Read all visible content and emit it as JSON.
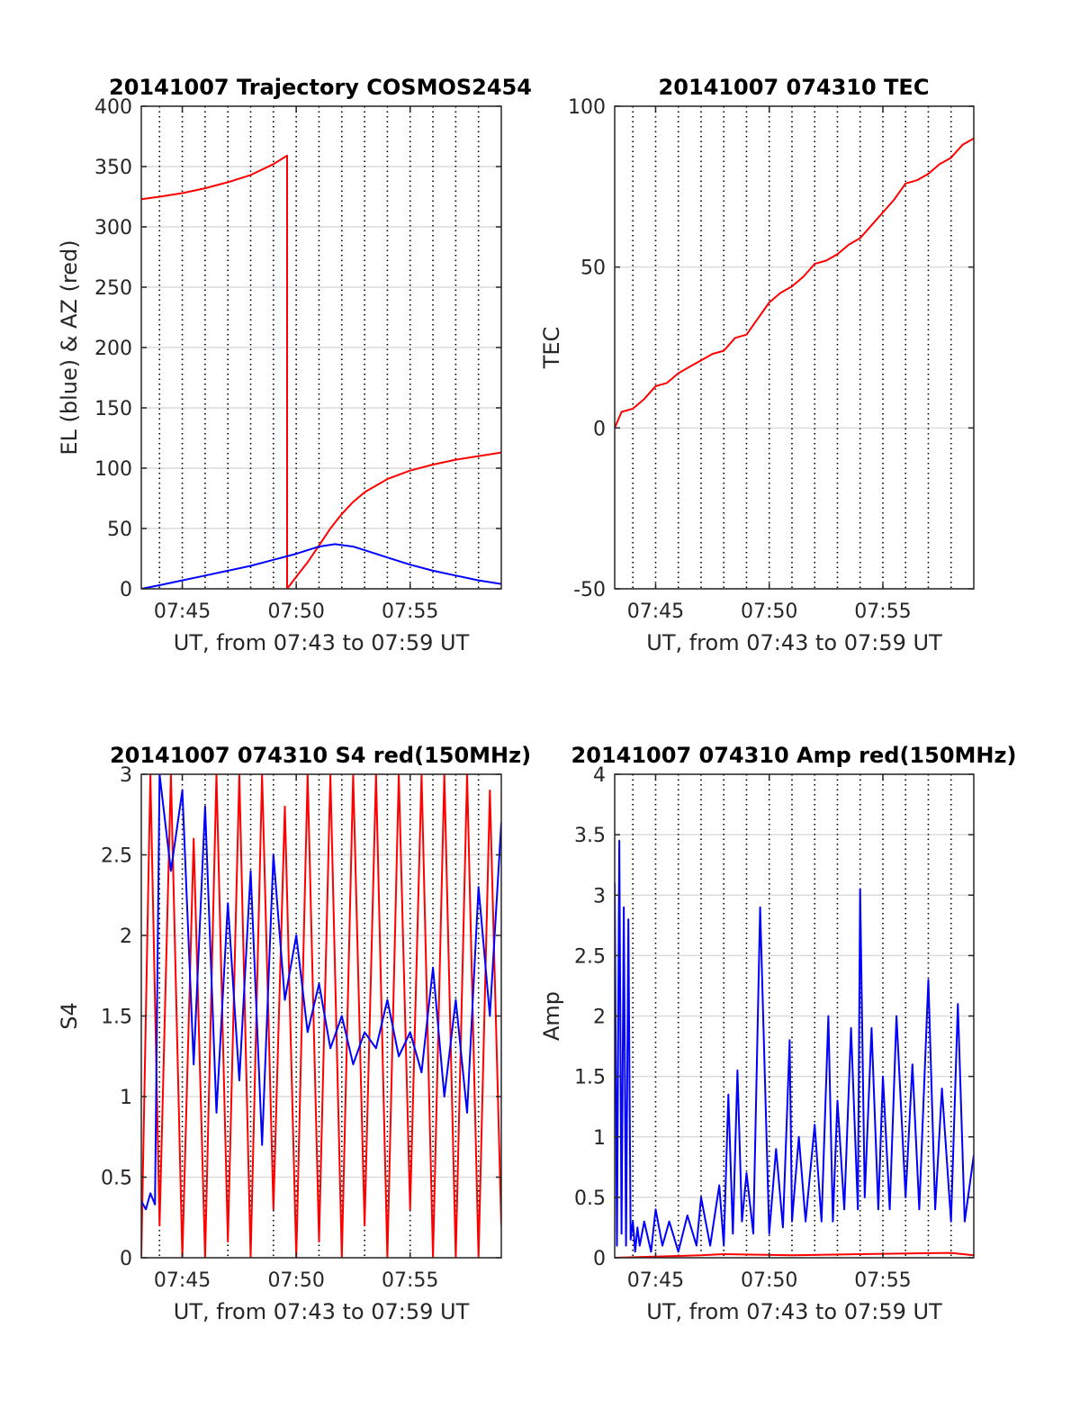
{
  "chart_data": [
    {
      "type": "line",
      "title": "20141007 Trajectory COSMOS2454",
      "xlabel": "UT, from 07:43 to 07:59 UT",
      "ylabel": "EL (blue) & AZ (red)",
      "x_unit": "minutes after 07:00 UT",
      "xlim": [
        43.2,
        59.0
      ],
      "ylim": [
        0,
        400
      ],
      "xticks": [
        45,
        50,
        55
      ],
      "xtick_labels": [
        "07:45",
        "07:50",
        "07:55"
      ],
      "yticks": [
        0,
        50,
        100,
        150,
        200,
        250,
        300,
        350,
        400
      ],
      "ytick_labels": [
        "0",
        "50",
        "100",
        "150",
        "200",
        "250",
        "300",
        "350",
        "400"
      ],
      "x_gridlines_dotted": [
        44,
        45,
        46,
        47,
        48,
        49,
        50,
        51,
        52,
        53,
        54,
        55,
        56,
        57,
        58
      ],
      "grid": true,
      "series": [
        {
          "color": "#ff0000",
          "x": [
            43.2,
            44.0,
            45.0,
            46.0,
            47.0,
            48.0,
            49.0,
            49.6,
            49.6,
            50.0,
            50.5,
            51.0,
            51.5,
            52.0,
            52.5,
            53.0,
            54.0,
            55.0,
            56.0,
            57.0,
            58.0,
            59.0
          ],
          "y": [
            323,
            325,
            328,
            332,
            337,
            343,
            352,
            359,
            0,
            10,
            22,
            36,
            50,
            62,
            72,
            80,
            91,
            98,
            103,
            107,
            110,
            113
          ]
        },
        {
          "color": "#0000ff",
          "x": [
            43.2,
            44.0,
            45.0,
            46.0,
            47.0,
            48.0,
            49.0,
            50.0,
            51.0,
            51.7,
            52.5,
            53.0,
            54.0,
            55.0,
            56.0,
            57.0,
            58.0,
            59.0
          ],
          "y": [
            0,
            3,
            7,
            11,
            15,
            19,
            24,
            29,
            35,
            37,
            35,
            32,
            26,
            20,
            15,
            11,
            7,
            4
          ]
        }
      ]
    },
    {
      "type": "line",
      "title": "20141007 074310 TEC",
      "xlabel": "UT, from 07:43 to 07:59 UT",
      "ylabel": "TEC",
      "x_unit": "minutes after 07:00 UT",
      "xlim": [
        43.2,
        59.0
      ],
      "ylim": [
        -50,
        100
      ],
      "xticks": [
        45,
        50,
        55
      ],
      "xtick_labels": [
        "07:45",
        "07:50",
        "07:55"
      ],
      "yticks": [
        -50,
        0,
        50,
        100
      ],
      "ytick_labels": [
        "-50",
        "0",
        "50",
        "100"
      ],
      "x_gridlines_dotted": [
        44,
        45,
        46,
        47,
        48,
        49,
        50,
        51,
        52,
        53,
        54,
        55,
        56,
        57,
        58
      ],
      "grid": true,
      "series": [
        {
          "color": "#ff0000",
          "x": [
            43.2,
            43.5,
            44.0,
            44.5,
            45.0,
            45.5,
            46.0,
            46.5,
            47.0,
            47.5,
            48.0,
            48.5,
            49.0,
            49.5,
            50.0,
            50.5,
            51.0,
            51.5,
            52.0,
            52.5,
            53.0,
            53.5,
            54.0,
            54.5,
            55.0,
            55.5,
            56.0,
            56.5,
            57.0,
            57.5,
            58.0,
            58.5,
            59.0
          ],
          "y": [
            0,
            5,
            6,
            9,
            13,
            14,
            17,
            19,
            21,
            23,
            24,
            28,
            29,
            34,
            39,
            42,
            44,
            47,
            51,
            52,
            54,
            57,
            59,
            63,
            67,
            71,
            76,
            77,
            79,
            82,
            84,
            88,
            90
          ]
        }
      ]
    },
    {
      "type": "line",
      "title": "20141007 074310 S4 red(150MHz)",
      "xlabel": "UT, from 07:43 to 07:59 UT",
      "ylabel": "S4",
      "x_unit": "minutes after 07:00 UT",
      "xlim": [
        43.2,
        59.0
      ],
      "ylim": [
        0,
        3
      ],
      "xticks": [
        45,
        50,
        55
      ],
      "xtick_labels": [
        "07:45",
        "07:50",
        "07:55"
      ],
      "yticks": [
        0,
        0.5,
        1,
        1.5,
        2,
        2.5,
        3
      ],
      "ytick_labels": [
        "0",
        "0.5",
        "1",
        "1.5",
        "2",
        "2.5",
        "3"
      ],
      "x_gridlines_dotted": [
        44,
        45,
        46,
        47,
        48,
        49,
        50,
        51,
        52,
        53,
        54,
        55,
        56,
        57,
        58
      ],
      "grid": true,
      "series": [
        {
          "color": "#ff0000",
          "x": [
            43.2,
            43.6,
            44.0,
            44.5,
            45.0,
            45.5,
            46.0,
            46.5,
            47.0,
            47.5,
            48.0,
            48.5,
            49.0,
            49.5,
            50.0,
            50.5,
            51.0,
            51.5,
            52.0,
            52.5,
            53.0,
            53.5,
            54.0,
            54.5,
            55.0,
            55.5,
            56.0,
            56.5,
            57.0,
            57.5,
            58.0,
            58.5,
            59.0
          ],
          "y": [
            0,
            3,
            0.2,
            3,
            0,
            2.6,
            0,
            3,
            0.1,
            3,
            0,
            3,
            0.3,
            2.8,
            0,
            3,
            0.1,
            3,
            0,
            3,
            0.2,
            3,
            0,
            3,
            0.3,
            3,
            0,
            3,
            0,
            3,
            0,
            2.9,
            0.2
          ]
        },
        {
          "color": "#0000ff",
          "x": [
            43.2,
            43.4,
            43.6,
            43.8,
            44.0,
            44.5,
            45.0,
            45.5,
            46.0,
            46.5,
            47.0,
            47.5,
            48.0,
            48.5,
            49.0,
            49.5,
            50.0,
            50.5,
            51.0,
            51.5,
            52.0,
            52.5,
            53.0,
            53.5,
            54.0,
            54.5,
            55.0,
            55.5,
            56.0,
            56.5,
            57.0,
            57.5,
            58.0,
            58.5,
            59.0
          ],
          "y": [
            0.35,
            0.3,
            0.4,
            0.33,
            3,
            2.4,
            2.9,
            1.2,
            2.8,
            0.9,
            2.2,
            1.1,
            2.4,
            0.7,
            2.5,
            1.6,
            2.0,
            1.4,
            1.7,
            1.3,
            1.5,
            1.2,
            1.4,
            1.3,
            1.6,
            1.25,
            1.4,
            1.15,
            1.8,
            1.0,
            1.6,
            0.9,
            2.3,
            1.5,
            2.7
          ]
        }
      ]
    },
    {
      "type": "line",
      "title": "20141007 074310 Amp red(150MHz)",
      "xlabel": "UT, from 07:43 to 07:59 UT",
      "ylabel": "Amp",
      "x_unit": "minutes after 07:00 UT",
      "xlim": [
        43.2,
        59.0
      ],
      "ylim": [
        0,
        4
      ],
      "xticks": [
        45,
        50,
        55
      ],
      "xtick_labels": [
        "07:45",
        "07:50",
        "07:55"
      ],
      "yticks": [
        0,
        0.5,
        1,
        1.5,
        2,
        2.5,
        3,
        3.5,
        4
      ],
      "ytick_labels": [
        "0",
        "0.5",
        "1",
        "1.5",
        "2",
        "2.5",
        "3",
        "3.5",
        "4"
      ],
      "x_gridlines_dotted": [
        44,
        45,
        46,
        47,
        48,
        49,
        50,
        51,
        52,
        53,
        54,
        55,
        56,
        57,
        58
      ],
      "grid": true,
      "series": [
        {
          "color": "#ff0000",
          "x": [
            43.2,
            47.0,
            48.0,
            51.0,
            54.0,
            58.0,
            59.0
          ],
          "y": [
            0,
            0.02,
            0.03,
            0.02,
            0.03,
            0.04,
            0.02
          ]
        },
        {
          "color": "#0000ff",
          "x": [
            43.2,
            43.3,
            43.4,
            43.5,
            43.6,
            43.7,
            43.8,
            43.9,
            44.0,
            44.1,
            44.2,
            44.3,
            44.5,
            44.8,
            45.0,
            45.3,
            45.6,
            46.0,
            46.4,
            46.8,
            47.0,
            47.4,
            47.8,
            48.0,
            48.2,
            48.4,
            48.6,
            48.8,
            49.0,
            49.3,
            49.6,
            50.0,
            50.3,
            50.6,
            50.9,
            51.0,
            51.3,
            51.6,
            52.0,
            52.3,
            52.6,
            52.8,
            53.0,
            53.3,
            53.6,
            53.9,
            54.0,
            54.2,
            54.5,
            54.8,
            55.0,
            55.3,
            55.6,
            56.0,
            56.3,
            56.6,
            57.0,
            57.3,
            57.6,
            58.0,
            58.3,
            58.6,
            59.0
          ],
          "y": [
            3.1,
            0.1,
            3.45,
            0.2,
            2.9,
            0.1,
            2.8,
            0.15,
            0.3,
            0.05,
            0.25,
            0.1,
            0.3,
            0.05,
            0.4,
            0.1,
            0.3,
            0.05,
            0.35,
            0.1,
            0.5,
            0.1,
            0.6,
            0.1,
            1.35,
            0.2,
            1.55,
            0.3,
            0.7,
            0.2,
            2.9,
            0.2,
            0.9,
            0.25,
            1.8,
            0.3,
            1.0,
            0.3,
            1.1,
            0.3,
            2.0,
            0.3,
            1.3,
            0.4,
            1.9,
            0.4,
            3.05,
            0.5,
            1.9,
            0.4,
            1.5,
            0.4,
            2.0,
            0.5,
            1.6,
            0.4,
            2.3,
            0.4,
            1.4,
            0.3,
            2.1,
            0.3,
            0.85
          ]
        }
      ]
    }
  ]
}
